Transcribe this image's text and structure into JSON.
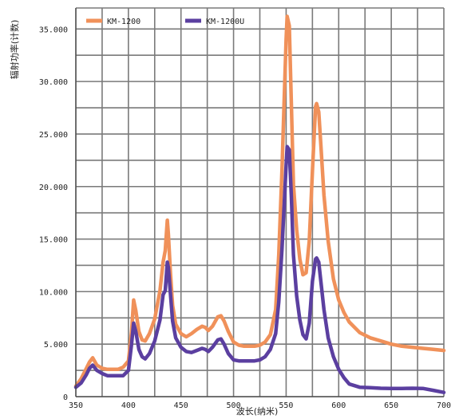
{
  "chart_data": {
    "type": "line",
    "xlabel": "波长(纳米)",
    "ylabel": "辐射功率(计数)",
    "xlim": [
      350,
      700
    ],
    "ylim": [
      0,
      37000
    ],
    "x_ticks": [
      350,
      400,
      450,
      500,
      550,
      600,
      650,
      700
    ],
    "x_tick_labels": [
      "350",
      "400",
      "450",
      "500",
      "550",
      "600",
      "650",
      "700"
    ],
    "y_ticks": [
      0,
      5000,
      10000,
      15000,
      20000,
      25000,
      30000,
      35000
    ],
    "y_tick_labels": [
      "0",
      "5.000",
      "10.000",
      "15.000",
      "20.000",
      "25.000",
      "30.000",
      "35.000"
    ],
    "grid": true,
    "legend_position": "top-left",
    "series": [
      {
        "name": "KM-1200",
        "color": "#f0915a",
        "points": [
          [
            350,
            1000
          ],
          [
            355,
            1700
          ],
          [
            360,
            2700
          ],
          [
            363,
            3300
          ],
          [
            366,
            3700
          ],
          [
            370,
            3000
          ],
          [
            375,
            2700
          ],
          [
            380,
            2600
          ],
          [
            385,
            2600
          ],
          [
            390,
            2600
          ],
          [
            395,
            2800
          ],
          [
            400,
            3400
          ],
          [
            403,
            6200
          ],
          [
            405,
            9200
          ],
          [
            407,
            8200
          ],
          [
            410,
            6200
          ],
          [
            413,
            5400
          ],
          [
            416,
            5300
          ],
          [
            420,
            6000
          ],
          [
            425,
            7400
          ],
          [
            430,
            10100
          ],
          [
            433,
            12800
          ],
          [
            435,
            13900
          ],
          [
            437,
            16800
          ],
          [
            438,
            15500
          ],
          [
            440,
            11800
          ],
          [
            442,
            8700
          ],
          [
            445,
            6900
          ],
          [
            450,
            6000
          ],
          [
            455,
            5700
          ],
          [
            460,
            6000
          ],
          [
            465,
            6400
          ],
          [
            470,
            6700
          ],
          [
            473,
            6600
          ],
          [
            476,
            6300
          ],
          [
            480,
            6700
          ],
          [
            485,
            7600
          ],
          [
            488,
            7700
          ],
          [
            491,
            7200
          ],
          [
            495,
            6200
          ],
          [
            500,
            5200
          ],
          [
            505,
            4900
          ],
          [
            510,
            4800
          ],
          [
            515,
            4800
          ],
          [
            520,
            4800
          ],
          [
            525,
            4900
          ],
          [
            530,
            5200
          ],
          [
            535,
            5900
          ],
          [
            540,
            8300
          ],
          [
            543,
            13500
          ],
          [
            546,
            21500
          ],
          [
            548,
            27800
          ],
          [
            550,
            34000
          ],
          [
            551,
            36200
          ],
          [
            553,
            35300
          ],
          [
            555,
            27800
          ],
          [
            557,
            20200
          ],
          [
            560,
            15900
          ],
          [
            563,
            13100
          ],
          [
            566,
            11600
          ],
          [
            569,
            11800
          ],
          [
            572,
            14800
          ],
          [
            575,
            21500
          ],
          [
            578,
            27600
          ],
          [
            579,
            27900
          ],
          [
            581,
            27100
          ],
          [
            583,
            24000
          ],
          [
            586,
            19200
          ],
          [
            590,
            14800
          ],
          [
            595,
            11200
          ],
          [
            600,
            9200
          ],
          [
            605,
            8000
          ],
          [
            610,
            7100
          ],
          [
            620,
            6100
          ],
          [
            630,
            5600
          ],
          [
            640,
            5300
          ],
          [
            650,
            5000
          ],
          [
            660,
            4800
          ],
          [
            670,
            4700
          ],
          [
            680,
            4600
          ],
          [
            690,
            4500
          ],
          [
            700,
            4400
          ]
        ]
      },
      {
        "name": "KM-1200U",
        "color": "#5b3fa0",
        "points": [
          [
            350,
            900
          ],
          [
            355,
            1300
          ],
          [
            360,
            2100
          ],
          [
            363,
            2700
          ],
          [
            366,
            3000
          ],
          [
            370,
            2500
          ],
          [
            375,
            2200
          ],
          [
            380,
            2000
          ],
          [
            385,
            2000
          ],
          [
            390,
            2000
          ],
          [
            395,
            2000
          ],
          [
            400,
            2500
          ],
          [
            403,
            5000
          ],
          [
            405,
            7000
          ],
          [
            407,
            6200
          ],
          [
            410,
            4500
          ],
          [
            413,
            3800
          ],
          [
            416,
            3600
          ],
          [
            420,
            4100
          ],
          [
            425,
            5300
          ],
          [
            430,
            7300
          ],
          [
            433,
            9700
          ],
          [
            435,
            10100
          ],
          [
            437,
            12800
          ],
          [
            438,
            12300
          ],
          [
            440,
            9800
          ],
          [
            442,
            7200
          ],
          [
            445,
            5600
          ],
          [
            450,
            4700
          ],
          [
            455,
            4300
          ],
          [
            460,
            4200
          ],
          [
            465,
            4400
          ],
          [
            470,
            4600
          ],
          [
            473,
            4500
          ],
          [
            476,
            4300
          ],
          [
            480,
            4700
          ],
          [
            485,
            5400
          ],
          [
            488,
            5500
          ],
          [
            491,
            5000
          ],
          [
            495,
            4100
          ],
          [
            500,
            3500
          ],
          [
            505,
            3400
          ],
          [
            510,
            3400
          ],
          [
            515,
            3400
          ],
          [
            520,
            3400
          ],
          [
            525,
            3500
          ],
          [
            530,
            3800
          ],
          [
            535,
            4500
          ],
          [
            540,
            6000
          ],
          [
            543,
            9000
          ],
          [
            546,
            14000
          ],
          [
            548,
            18000
          ],
          [
            550,
            22000
          ],
          [
            551,
            23800
          ],
          [
            553,
            23500
          ],
          [
            555,
            19000
          ],
          [
            557,
            13500
          ],
          [
            560,
            9600
          ],
          [
            563,
            7300
          ],
          [
            566,
            5900
          ],
          [
            569,
            5500
          ],
          [
            572,
            7000
          ],
          [
            575,
            11000
          ],
          [
            578,
            13100
          ],
          [
            579,
            13200
          ],
          [
            581,
            12800
          ],
          [
            583,
            11000
          ],
          [
            586,
            8300
          ],
          [
            590,
            5600
          ],
          [
            595,
            3800
          ],
          [
            600,
            2600
          ],
          [
            605,
            1800
          ],
          [
            610,
            1200
          ],
          [
            620,
            900
          ],
          [
            630,
            850
          ],
          [
            640,
            800
          ],
          [
            650,
            780
          ],
          [
            660,
            780
          ],
          [
            670,
            800
          ],
          [
            680,
            780
          ],
          [
            690,
            600
          ],
          [
            700,
            400
          ]
        ]
      }
    ]
  }
}
